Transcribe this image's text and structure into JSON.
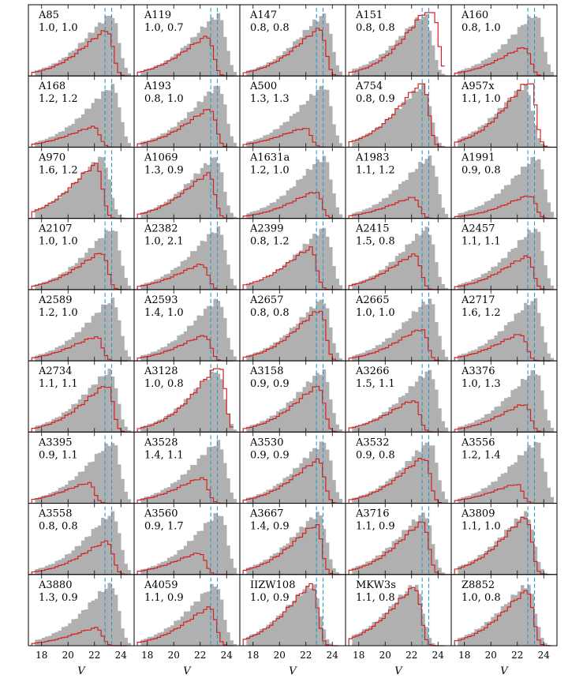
{
  "chart_data": {
    "type": "bar",
    "layout": {
      "rows": 9,
      "cols": 5
    },
    "xlabel": "V",
    "xlim": [
      17,
      25
    ],
    "xticks": [
      18,
      20,
      22,
      24
    ],
    "vlines": [
      22.8,
      23.3
    ],
    "colors": {
      "filled": "#b0b0b0",
      "line": "#d62020",
      "vline": "#2a9ac8",
      "frame": "#000000"
    },
    "panels": [
      {
        "name": "A85",
        "values": "1.0, 1.0",
        "filled_peak": 23.3,
        "line_peak": 23.0,
        "line_scale": 0.72
      },
      {
        "name": "A119",
        "values": "1.0, 0.7",
        "filled_peak": 23.4,
        "line_peak": 22.6,
        "line_scale": 0.62
      },
      {
        "name": "A147",
        "values": "0.8, 0.8",
        "filled_peak": 23.4,
        "line_peak": 23.1,
        "line_scale": 0.74
      },
      {
        "name": "A151",
        "values": "0.8, 0.8",
        "filled_peak": 23.0,
        "line_peak": 23.6,
        "line_scale": 1.12
      },
      {
        "name": "A160",
        "values": "0.8, 1.0",
        "filled_peak": 23.4,
        "line_peak": 22.6,
        "line_scale": 0.45
      },
      {
        "name": "A168",
        "values": "1.2, 1.2",
        "filled_peak": 23.4,
        "line_peak": 22.0,
        "line_scale": 0.32
      },
      {
        "name": "A193",
        "values": "0.8, 1.0",
        "filled_peak": 23.4,
        "line_peak": 22.8,
        "line_scale": 0.6
      },
      {
        "name": "A500",
        "values": "1.3, 1.3",
        "filled_peak": 23.4,
        "line_peak": 22.0,
        "line_scale": 0.3
      },
      {
        "name": "A754",
        "values": "0.8, 0.9",
        "filled_peak": 22.9,
        "line_peak": 22.9,
        "line_scale": 1.02
      },
      {
        "name": "A957x",
        "values": "1.1, 1.0",
        "filled_peak": 22.6,
        "line_peak": 23.0,
        "line_scale": 1.05
      },
      {
        "name": "A970",
        "values": "1.6, 1.2",
        "filled_peak": 22.6,
        "line_peak": 22.2,
        "line_scale": 0.85
      },
      {
        "name": "A1069",
        "values": "1.3, 0.9",
        "filled_peak": 23.2,
        "line_peak": 22.7,
        "line_scale": 0.7
      },
      {
        "name": "A1631a",
        "values": "1.2, 1.0",
        "filled_peak": 23.4,
        "line_peak": 22.8,
        "line_scale": 0.42
      },
      {
        "name": "A1983",
        "values": "1.1, 1.2",
        "filled_peak": 23.4,
        "line_peak": 22.2,
        "line_scale": 0.33
      },
      {
        "name": "A1991",
        "values": "0.9, 0.8",
        "filled_peak": 23.5,
        "line_peak": 23.0,
        "line_scale": 0.36
      },
      {
        "name": "A2107",
        "values": "1.0, 1.0",
        "filled_peak": 23.4,
        "line_peak": 22.6,
        "line_scale": 0.58
      },
      {
        "name": "A2382",
        "values": "1.0, 2.1",
        "filled_peak": 23.4,
        "line_peak": 22.2,
        "line_scale": 0.4
      },
      {
        "name": "A2399",
        "values": "0.8, 1.2",
        "filled_peak": 23.4,
        "line_peak": 22.4,
        "line_scale": 0.65
      },
      {
        "name": "A2415",
        "values": "1.5, 0.8",
        "filled_peak": 23.2,
        "line_peak": 22.3,
        "line_scale": 0.55
      },
      {
        "name": "A2457",
        "values": "1.1, 1.1",
        "filled_peak": 23.4,
        "line_peak": 22.8,
        "line_scale": 0.52
      },
      {
        "name": "A2589",
        "values": "1.2, 1.0",
        "filled_peak": 23.4,
        "line_peak": 22.2,
        "line_scale": 0.38
      },
      {
        "name": "A2593",
        "values": "1.4, 1.0",
        "filled_peak": 23.4,
        "line_peak": 22.4,
        "line_scale": 0.4
      },
      {
        "name": "A2657",
        "values": "0.8, 0.8",
        "filled_peak": 23.3,
        "line_peak": 23.1,
        "line_scale": 0.8
      },
      {
        "name": "A2665",
        "values": "1.0, 1.0",
        "filled_peak": 23.4,
        "line_peak": 22.8,
        "line_scale": 0.5
      },
      {
        "name": "A2717",
        "values": "1.6, 1.2",
        "filled_peak": 23.3,
        "line_peak": 22.3,
        "line_scale": 0.42
      },
      {
        "name": "A2734",
        "values": "1.1, 1.1",
        "filled_peak": 23.2,
        "line_peak": 23.0,
        "line_scale": 0.74
      },
      {
        "name": "A3128",
        "values": "1.0, 0.8",
        "filled_peak": 23.3,
        "line_peak": 23.5,
        "line_scale": 1.05
      },
      {
        "name": "A3158",
        "values": "0.9, 0.9",
        "filled_peak": 23.3,
        "line_peak": 23.0,
        "line_scale": 0.72
      },
      {
        "name": "A3266",
        "values": "1.5, 1.1",
        "filled_peak": 23.4,
        "line_peak": 22.2,
        "line_scale": 0.5
      },
      {
        "name": "A3376",
        "values": "1.0, 1.3",
        "filled_peak": 23.4,
        "line_peak": 22.6,
        "line_scale": 0.44
      },
      {
        "name": "A3395",
        "values": "0.9, 1.1",
        "filled_peak": 23.4,
        "line_peak": 21.6,
        "line_scale": 0.32
      },
      {
        "name": "A3528",
        "values": "1.4, 1.1",
        "filled_peak": 23.4,
        "line_peak": 22.2,
        "line_scale": 0.4
      },
      {
        "name": "A3530",
        "values": "0.9, 0.9",
        "filled_peak": 23.4,
        "line_peak": 23.0,
        "line_scale": 0.68
      },
      {
        "name": "A3532",
        "values": "0.9, 0.8",
        "filled_peak": 23.4,
        "line_peak": 23.0,
        "line_scale": 0.72
      },
      {
        "name": "A3556",
        "values": "1.2, 1.4",
        "filled_peak": 23.5,
        "line_peak": 22.0,
        "line_scale": 0.3
      },
      {
        "name": "A3558",
        "values": "0.8, 0.8",
        "filled_peak": 23.4,
        "line_peak": 23.0,
        "line_scale": 0.52
      },
      {
        "name": "A3560",
        "values": "0.9, 1.7",
        "filled_peak": 23.5,
        "line_peak": 22.0,
        "line_scale": 0.34
      },
      {
        "name": "A3667",
        "values": "1.4, 0.9",
        "filled_peak": 23.0,
        "line_peak": 22.8,
        "line_scale": 0.78
      },
      {
        "name": "A3716",
        "values": "1.1, 0.9",
        "filled_peak": 23.0,
        "line_peak": 22.9,
        "line_scale": 0.82
      },
      {
        "name": "A3809",
        "values": "1.1, 1.0",
        "filled_peak": 22.7,
        "line_peak": 22.7,
        "line_scale": 0.9
      },
      {
        "name": "A3880",
        "values": "1.3, 0.9",
        "filled_peak": 23.3,
        "line_peak": 22.2,
        "line_scale": 0.28
      },
      {
        "name": "A4059",
        "values": "1.1, 0.9",
        "filled_peak": 23.2,
        "line_peak": 22.8,
        "line_scale": 0.6
      },
      {
        "name": "IIZW108",
        "values": "1.0, 0.9",
        "filled_peak": 22.5,
        "line_peak": 22.5,
        "line_scale": 0.96
      },
      {
        "name": "MKW3s",
        "values": "1.1, 0.8",
        "filled_peak": 22.3,
        "line_peak": 22.3,
        "line_scale": 0.92
      },
      {
        "name": "Z8852",
        "values": "1.0, 0.8",
        "filled_peak": 22.8,
        "line_peak": 22.8,
        "line_scale": 0.86
      }
    ]
  }
}
